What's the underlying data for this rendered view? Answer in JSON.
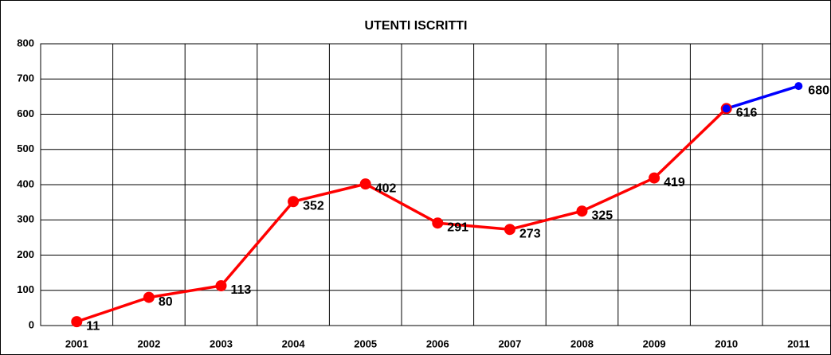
{
  "chart_data": {
    "type": "line",
    "title": "UTENTI ISCRITTI",
    "categories": [
      "2001",
      "2002",
      "2003",
      "2004",
      "2005",
      "2006",
      "2007",
      "2008",
      "2009",
      "2010",
      "2011"
    ],
    "series": [
      {
        "color": "#ff0000",
        "values": [
          11,
          80,
          113,
          352,
          402,
          291,
          273,
          325,
          419,
          616,
          null
        ]
      },
      {
        "color": "#0000ff",
        "values": [
          null,
          null,
          null,
          null,
          null,
          null,
          null,
          null,
          null,
          616,
          680
        ]
      }
    ],
    "ylim": [
      0,
      800
    ],
    "yticks": [
      0,
      100,
      200,
      300,
      400,
      500,
      600,
      700,
      800
    ],
    "grid": true
  }
}
